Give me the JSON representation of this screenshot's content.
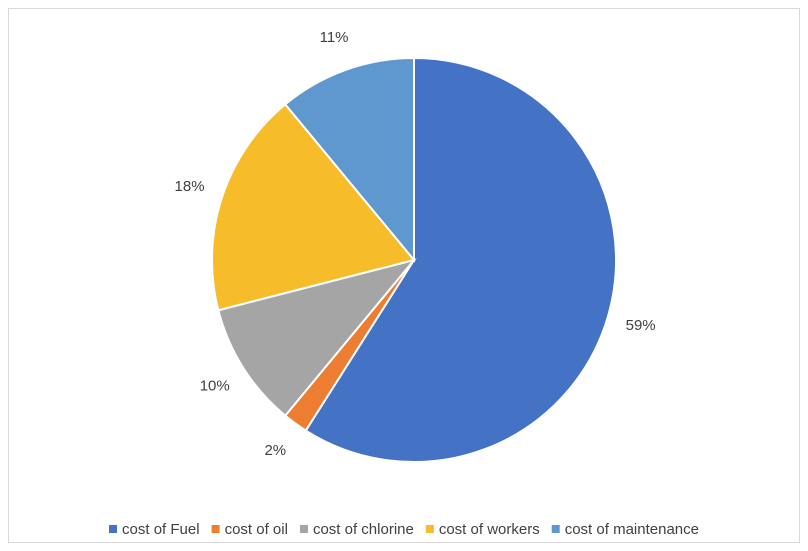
{
  "chart_data": {
    "type": "pie",
    "categories": [
      "cost of Fuel",
      "cost of oil",
      "cost of chlorine",
      "cost of workers",
      "cost of maintenance"
    ],
    "values": [
      59,
      2,
      10,
      18,
      11
    ],
    "value_labels": [
      "59%",
      "2%",
      "10%",
      "18%",
      "11%"
    ],
    "colors": [
      "#4472c4",
      "#ed7d31",
      "#a5a5a5",
      "#f6bc2a",
      "#5f98cf"
    ],
    "legend": "bottom"
  }
}
